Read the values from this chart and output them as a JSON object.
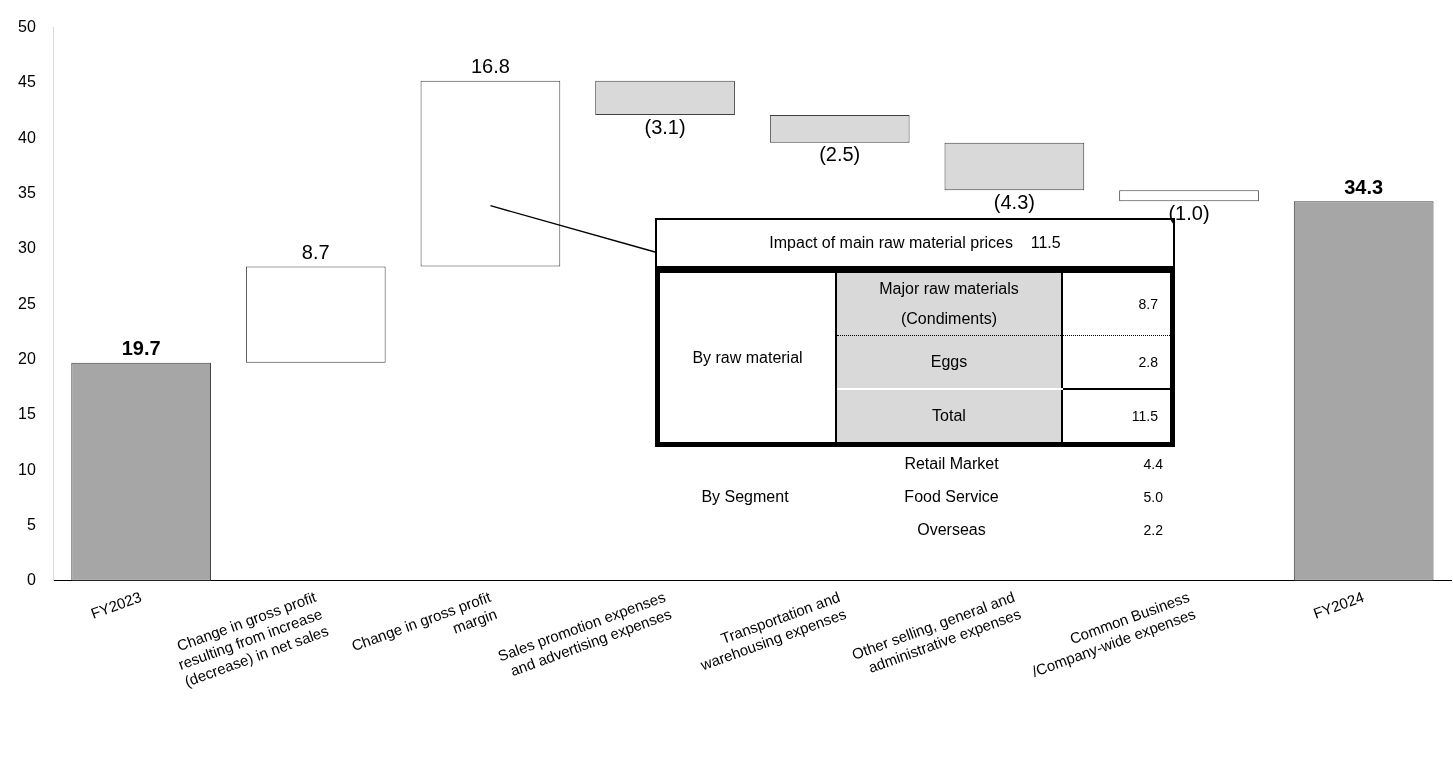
{
  "chart_data": {
    "type": "bar",
    "categories": [
      "FY2023",
      "Change in gross profit resulting from increase (decrease) in net sales",
      "Change in gross profit margin",
      "Sales promotion expenses and advertising expenses",
      "Transportation and warehousing expenses",
      "Other selling, general and administrative expenses",
      "Common Business /Company-wide expenses",
      "FY2024"
    ],
    "values": [
      19.7,
      8.7,
      16.8,
      -3.1,
      -2.5,
      -4.3,
      -1.0,
      34.3
    ],
    "base": [
      0,
      19.7,
      28.4,
      45.2,
      42.1,
      39.6,
      35.3,
      0
    ],
    "colors": [
      "#a6a6a6",
      "#ffffff",
      "#ffffff",
      "#d9d9d9",
      "#d9d9d9",
      "#d9d9d9",
      "#ffffff",
      "#a6a6a6"
    ],
    "value_labels": [
      "19.7",
      "8.7",
      "16.8",
      "(3.1)",
      "(2.5)",
      "(4.3)",
      "(1.0)",
      "34.3"
    ],
    "ylim": [
      0,
      50
    ],
    "yticks": [
      0,
      5,
      10,
      15,
      20,
      25,
      30,
      35,
      40,
      45,
      50
    ],
    "grid": false,
    "legend": false,
    "annotations": [
      "Impact of main raw material prices",
      "11.5",
      "By raw material",
      "Major raw materials (Condiments)",
      "8.7",
      "Eggs",
      "2.8",
      "Total",
      "11.5",
      "By Segment",
      "Retail Market",
      "4.4",
      "Food Service",
      "5.0",
      "Overseas",
      "2.2"
    ]
  }
}
